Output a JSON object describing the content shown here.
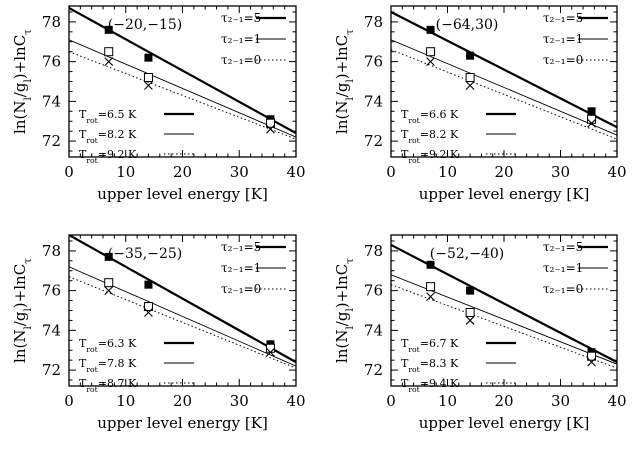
{
  "figure": {
    "panels": [
      {
        "position_label": "(−20,−15)",
        "legend_tau": [
          "τ₂₋₁=5",
          "τ₂₋₁=1",
          "τ₂₋₁=0"
        ],
        "legend_trot": [
          "T_rot=6.5 K",
          "T_rot=8.2 K",
          "T_rot=9.2 K"
        ]
      },
      {
        "position_label": "(−64,30)",
        "legend_tau": [
          "τ₂₋₁=5",
          "τ₂₋₁=1",
          "τ₂₋₁=0"
        ],
        "legend_trot": [
          "T_rot=6.6 K",
          "T_rot=8.2 K",
          "T_rot=9.2 K"
        ]
      },
      {
        "position_label": "(−35,−25)",
        "legend_tau": [
          "τ₂₋₁=5",
          "τ₂₋₁=1",
          "τ₂₋₁=0"
        ],
        "legend_trot": [
          "T_rot=6.3 K",
          "T_rot=7.8 K",
          "T_rot=8.7 K"
        ]
      },
      {
        "position_label": "(−52,−40)",
        "legend_tau": [
          "τ₂₋₁=5",
          "τ₂₋₁=1",
          "τ₂₋₁=0"
        ],
        "legend_trot": [
          "T_rot=6.7 K",
          "T_rot=8.3 K",
          "T_rot=9.4 K"
        ]
      }
    ]
  },
  "chart_data": [
    {
      "type": "scatter",
      "xlabel": "upper level energy [K]",
      "ylabel": "ln(N_l/g_l)+lnC_τ",
      "xlim": [
        0,
        40
      ],
      "ylim": [
        71.2,
        78.8
      ],
      "xticks": [
        0,
        10,
        20,
        30,
        40
      ],
      "yticks": [
        72,
        74,
        76,
        78
      ],
      "series": [
        {
          "name": "τ₂₋₁=5",
          "marker": "filled-square",
          "line": "thick-solid",
          "x": [
            7,
            14,
            35.5
          ],
          "y": [
            77.6,
            76.2,
            73.1
          ],
          "fit": [
            [
              0,
              78.7
            ],
            [
              40,
              72.4
            ]
          ]
        },
        {
          "name": "τ₂₋₁=1",
          "marker": "open-square",
          "line": "thin-solid",
          "x": [
            7,
            14,
            35.5
          ],
          "y": [
            76.5,
            75.2,
            72.9
          ],
          "fit": [
            [
              0,
              77.1
            ],
            [
              40,
              72.2
            ]
          ]
        },
        {
          "name": "τ₂₋₁=0",
          "marker": "cross",
          "line": "dotted",
          "x": [
            7,
            14,
            35.5
          ],
          "y": [
            76.0,
            74.8,
            72.6
          ],
          "fit": [
            [
              0,
              76.5
            ],
            [
              40,
              72.1
            ]
          ]
        }
      ]
    },
    {
      "type": "scatter",
      "xlabel": "upper level energy [K]",
      "ylabel": "ln(N_l/g_l)+lnC_τ",
      "xlim": [
        0,
        40
      ],
      "ylim": [
        71.2,
        78.8
      ],
      "xticks": [
        0,
        10,
        20,
        30,
        40
      ],
      "yticks": [
        72,
        74,
        76,
        78
      ],
      "series": [
        {
          "name": "τ₂₋₁=5",
          "marker": "filled-square",
          "line": "thick-solid",
          "x": [
            7,
            14,
            35.5
          ],
          "y": [
            77.6,
            76.3,
            73.5
          ],
          "fit": [
            [
              0,
              78.5
            ],
            [
              40,
              72.7
            ]
          ]
        },
        {
          "name": "τ₂₋₁=1",
          "marker": "open-square",
          "line": "thin-solid",
          "x": [
            7,
            14,
            35.5
          ],
          "y": [
            76.5,
            75.2,
            73.1
          ],
          "fit": [
            [
              0,
              77.1
            ],
            [
              40,
              72.3
            ]
          ]
        },
        {
          "name": "τ₂₋₁=0",
          "marker": "cross",
          "line": "dotted",
          "x": [
            7,
            14,
            35.5
          ],
          "y": [
            76.0,
            74.8,
            72.9
          ],
          "fit": [
            [
              0,
              76.6
            ],
            [
              40,
              72.1
            ]
          ]
        }
      ]
    },
    {
      "type": "scatter",
      "xlabel": "upper level energy [K]",
      "ylabel": "ln(N_l/g_l)+lnC_τ",
      "xlim": [
        0,
        40
      ],
      "ylim": [
        71.2,
        78.8
      ],
      "xticks": [
        0,
        10,
        20,
        30,
        40
      ],
      "yticks": [
        72,
        74,
        76,
        78
      ],
      "series": [
        {
          "name": "τ₂₋₁=5",
          "marker": "filled-square",
          "line": "thick-solid",
          "x": [
            7,
            14,
            35.5
          ],
          "y": [
            77.7,
            76.3,
            73.3
          ],
          "fit": [
            [
              0,
              78.8
            ],
            [
              40,
              72.4
            ]
          ]
        },
        {
          "name": "τ₂₋₁=1",
          "marker": "open-square",
          "line": "thin-solid",
          "x": [
            7,
            14,
            35.5
          ],
          "y": [
            76.4,
            75.2,
            73.1
          ],
          "fit": [
            [
              0,
              77.2
            ],
            [
              40,
              72.2
            ]
          ]
        },
        {
          "name": "τ₂₋₁=0",
          "marker": "cross",
          "line": "dotted",
          "x": [
            7,
            14,
            35.5
          ],
          "y": [
            76.0,
            74.9,
            72.9
          ],
          "fit": [
            [
              0,
              76.7
            ],
            [
              40,
              72.1
            ]
          ]
        }
      ]
    },
    {
      "type": "scatter",
      "xlabel": "upper level energy [K]",
      "ylabel": "ln(N_l/g_l)+lnC_τ",
      "xlim": [
        0,
        40
      ],
      "ylim": [
        71.2,
        78.8
      ],
      "xticks": [
        0,
        10,
        20,
        30,
        40
      ],
      "yticks": [
        72,
        74,
        76,
        78
      ],
      "series": [
        {
          "name": "τ₂₋₁=5",
          "marker": "filled-square",
          "line": "thick-solid",
          "x": [
            7,
            14,
            35.5
          ],
          "y": [
            77.3,
            76.0,
            72.9
          ],
          "fit": [
            [
              0,
              78.3
            ],
            [
              40,
              72.4
            ]
          ]
        },
        {
          "name": "τ₂₋₁=1",
          "marker": "open-square",
          "line": "thin-solid",
          "x": [
            7,
            14,
            35.5
          ],
          "y": [
            76.2,
            74.9,
            72.7
          ],
          "fit": [
            [
              0,
              76.8
            ],
            [
              40,
              72.3
            ]
          ]
        },
        {
          "name": "τ₂₋₁=0",
          "marker": "cross",
          "line": "dotted",
          "x": [
            7,
            14,
            35.5
          ],
          "y": [
            75.7,
            74.5,
            72.4
          ],
          "fit": [
            [
              0,
              76.3
            ],
            [
              40,
              72.1
            ]
          ]
        }
      ]
    }
  ]
}
